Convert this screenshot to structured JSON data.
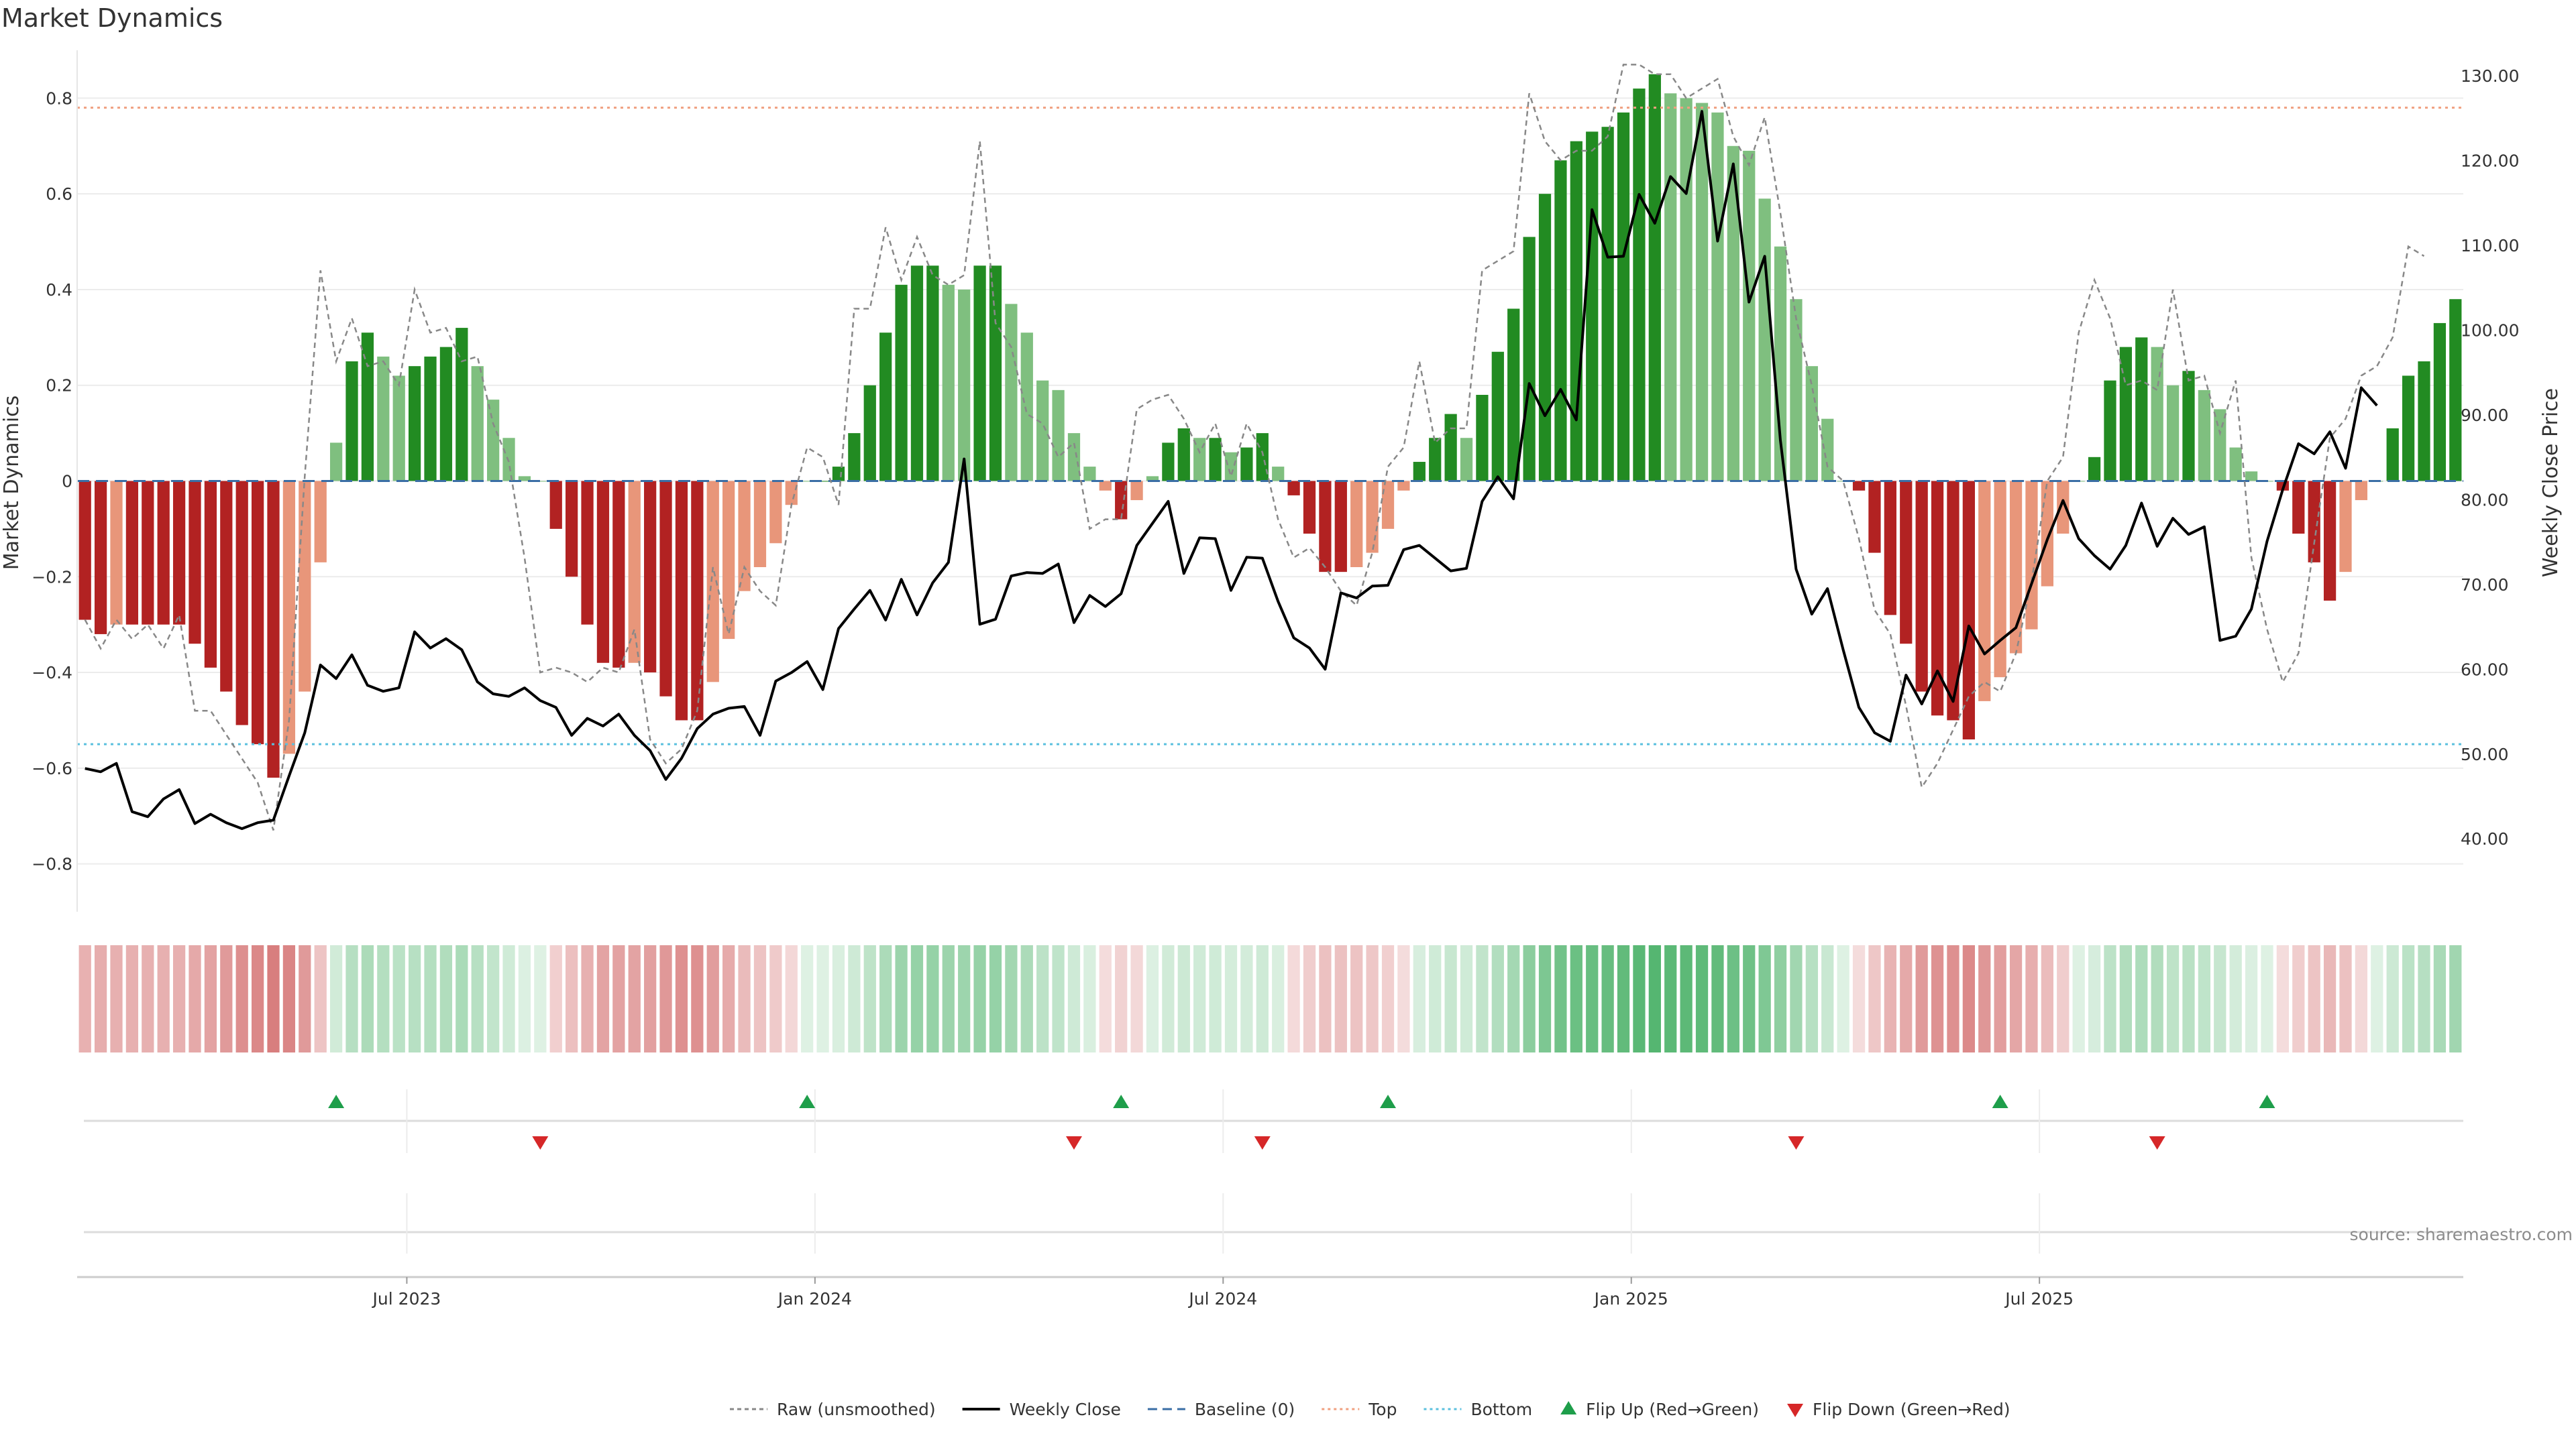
{
  "chart_data": {
    "type": "bar",
    "title": "Market Dynamics",
    "ylabel_left": "Market Dynamics",
    "ylabel_right": "Weekly Close Price",
    "ylim_left": [
      -0.9,
      0.9
    ],
    "ylim_right": [
      31.4,
      133.0
    ],
    "yticks_left": [
      {
        "value": 0.8,
        "label": "0.8"
      },
      {
        "value": 0.6,
        "label": "0.6"
      },
      {
        "value": 0.4,
        "label": "0.4"
      },
      {
        "value": 0.2,
        "label": "0.2"
      },
      {
        "value": 0,
        "label": "0"
      },
      {
        "value": -0.2,
        "label": "−0.2"
      },
      {
        "value": -0.4,
        "label": "−0.4"
      },
      {
        "value": -0.6,
        "label": "−0.6"
      },
      {
        "value": -0.8,
        "label": "−0.8"
      }
    ],
    "yticks_right": [
      {
        "value": 130,
        "label": "130.00"
      },
      {
        "value": 120,
        "label": "120.00"
      },
      {
        "value": 110,
        "label": "110.00"
      },
      {
        "value": 100,
        "label": "100.00"
      },
      {
        "value": 90,
        "label": "90.00"
      },
      {
        "value": 80,
        "label": "80.00"
      },
      {
        "value": 70,
        "label": "70.00"
      },
      {
        "value": 60,
        "label": "60.00"
      },
      {
        "value": 50,
        "label": "50.00"
      },
      {
        "value": 40,
        "label": "40.00"
      }
    ],
    "xticks": [
      {
        "index": 20.5,
        "label": "Jul 2023"
      },
      {
        "index": 46.5,
        "label": "Jan 2024"
      },
      {
        "index": 72.5,
        "label": "Jul 2024"
      },
      {
        "index": 98.5,
        "label": "Jan 2025"
      },
      {
        "index": 124.5,
        "label": "Jul 2025"
      }
    ],
    "top_level": 0.78,
    "bottom_level": -0.55,
    "baseline": 0,
    "dynamics": [
      -0.29,
      -0.32,
      -0.3,
      -0.3,
      -0.3,
      -0.3,
      -0.3,
      -0.34,
      -0.39,
      -0.44,
      -0.51,
      -0.55,
      -0.62,
      -0.57,
      -0.44,
      -0.17,
      0.08,
      0.25,
      0.31,
      0.26,
      0.22,
      0.24,
      0.26,
      0.28,
      0.32,
      0.24,
      0.17,
      0.09,
      0.01,
      0.0,
      -0.1,
      -0.2,
      -0.3,
      -0.38,
      -0.39,
      -0.38,
      -0.4,
      -0.45,
      -0.5,
      -0.5,
      -0.42,
      -0.33,
      -0.23,
      -0.18,
      -0.13,
      -0.05,
      0.0,
      0.0,
      0.03,
      0.1,
      0.2,
      0.31,
      0.41,
      0.45,
      0.45,
      0.41,
      0.4,
      0.45,
      0.45,
      0.37,
      0.31,
      0.21,
      0.19,
      0.1,
      0.03,
      -0.02,
      -0.08,
      -0.04,
      0.01,
      0.08,
      0.11,
      0.09,
      0.09,
      0.06,
      0.07,
      0.1,
      0.03,
      -0.03,
      -0.11,
      -0.19,
      -0.19,
      -0.18,
      -0.15,
      -0.1,
      -0.02,
      0.04,
      0.09,
      0.14,
      0.09,
      0.18,
      0.27,
      0.36,
      0.51,
      0.6,
      0.67,
      0.71,
      0.73,
      0.74,
      0.77,
      0.82,
      0.85,
      0.81,
      0.8,
      0.79,
      0.77,
      0.7,
      0.69,
      0.59,
      0.49,
      0.38,
      0.24,
      0.13,
      0.0,
      -0.02,
      -0.15,
      -0.28,
      -0.34,
      -0.44,
      -0.49,
      -0.5,
      -0.54,
      -0.46,
      -0.41,
      -0.36,
      -0.31,
      -0.22,
      -0.11,
      0.0,
      0.05,
      0.21,
      0.28,
      0.3,
      0.28,
      0.2,
      0.23,
      0.19,
      0.15,
      0.07,
      0.02,
      0.0,
      -0.02,
      -0.11,
      -0.17,
      -0.25,
      -0.19,
      -0.04,
      0.0,
      0.11,
      0.22,
      0.25,
      0.33,
      0.38
    ],
    "raw": [
      -0.29,
      -0.35,
      -0.29,
      -0.33,
      -0.3,
      -0.35,
      -0.28,
      -0.48,
      -0.48,
      -0.53,
      -0.58,
      -0.63,
      -0.73,
      -0.5,
      0.01,
      0.44,
      0.25,
      0.34,
      0.24,
      0.25,
      0.2,
      0.4,
      0.31,
      0.32,
      0.25,
      0.26,
      0.12,
      0.04,
      -0.16,
      -0.4,
      -0.39,
      -0.4,
      -0.42,
      -0.39,
      -0.4,
      -0.31,
      -0.54,
      -0.59,
      -0.56,
      -0.48,
      -0.18,
      -0.32,
      -0.18,
      -0.23,
      -0.26,
      -0.05,
      0.07,
      0.05,
      -0.05,
      0.36,
      0.36,
      0.53,
      0.42,
      0.51,
      0.43,
      0.41,
      0.43,
      0.71,
      0.33,
      0.28,
      0.14,
      0.12,
      0.05,
      0.08,
      -0.1,
      -0.08,
      -0.08,
      0.15,
      0.17,
      0.18,
      0.13,
      0.06,
      0.12,
      0.01,
      0.12,
      0.06,
      -0.08,
      -0.16,
      -0.14,
      -0.18,
      -0.23,
      -0.26,
      -0.15,
      0.03,
      0.07,
      0.25,
      0.08,
      0.11,
      0.11,
      0.44,
      0.46,
      0.48,
      0.81,
      0.71,
      0.67,
      0.69,
      0.69,
      0.72,
      0.87,
      0.87,
      0.85,
      0.85,
      0.8,
      0.82,
      0.84,
      0.72,
      0.66,
      0.76,
      0.56,
      0.34,
      0.2,
      0.03,
      0.0,
      -0.12,
      -0.27,
      -0.32,
      -0.47,
      -0.64,
      -0.59,
      -0.52,
      -0.45,
      -0.42,
      -0.44,
      -0.36,
      -0.21,
      0.0,
      0.05,
      0.31,
      0.42,
      0.34,
      0.2,
      0.21,
      0.19,
      0.4,
      0.21,
      0.22,
      0.1,
      0.21,
      -0.16,
      -0.31,
      -0.42,
      -0.36,
      -0.13,
      0.09,
      0.13,
      0.22,
      0.24,
      0.3,
      0.49,
      0.47
    ],
    "close": [
      48.3,
      47.9,
      48.9,
      43.2,
      42.6,
      44.7,
      45.8,
      41.8,
      42.9,
      41.9,
      41.2,
      41.9,
      42.2,
      47.4,
      52.5,
      60.5,
      58.9,
      61.7,
      58.1,
      57.4,
      57.8,
      64.4,
      62.5,
      63.6,
      62.3,
      58.5,
      57.1,
      56.8,
      57.8,
      56.3,
      55.5,
      52.2,
      54.2,
      53.3,
      54.7,
      52.2,
      50.4,
      47.0,
      49.5,
      53.0,
      54.7,
      55.4,
      55.6,
      52.2,
      58.6,
      59.6,
      60.9,
      57.6,
      64.8,
      67.1,
      69.3,
      65.8,
      70.6,
      66.4,
      70.2,
      72.6,
      84.8,
      65.3,
      65.9,
      71.0,
      71.4,
      71.3,
      72.4,
      65.5,
      68.7,
      67.4,
      68.9,
      74.6,
      77.2,
      79.8,
      71.3,
      75.5,
      75.4,
      69.3,
      73.2,
      73.1,
      68.0,
      63.7,
      62.5,
      60.0,
      69.0,
      68.4,
      69.8,
      69.9,
      74.1,
      74.6,
      73.1,
      71.6,
      71.9,
      79.8,
      82.7,
      80.1,
      93.7,
      89.9,
      93.0,
      89.4,
      114.2,
      108.6,
      108.7,
      116.0,
      112.6,
      118.1,
      116.1,
      125.8,
      110.5,
      119.6,
      103.3,
      108.7,
      87.0,
      71.8,
      66.5,
      69.5,
      62.3,
      55.5,
      52.5,
      51.5,
      59.3,
      55.9,
      59.8,
      56.2,
      65.1,
      61.8,
      63.4,
      64.9,
      70.1,
      75.3,
      79.9,
      75.4,
      73.4,
      71.8,
      74.6,
      79.6,
      74.5,
      77.8,
      75.9,
      76.8,
      63.4,
      63.9,
      67.1,
      75.1,
      81.2,
      86.6,
      85.4,
      88.0,
      83.7,
      93.2,
      91.1
    ],
    "colorbar": [
      -0.29,
      -0.32,
      -0.3,
      -0.3,
      -0.3,
      -0.3,
      -0.3,
      -0.34,
      -0.39,
      -0.44,
      -0.51,
      -0.55,
      -0.62,
      -0.57,
      -0.44,
      -0.17,
      0.08,
      0.25,
      0.31,
      0.26,
      0.22,
      0.24,
      0.26,
      0.28,
      0.32,
      0.24,
      0.17,
      0.09,
      0.01,
      0.0,
      -0.1,
      -0.2,
      -0.3,
      -0.38,
      -0.39,
      -0.38,
      -0.4,
      -0.45,
      -0.5,
      -0.5,
      -0.42,
      -0.33,
      -0.23,
      -0.18,
      -0.13,
      -0.05,
      0.0,
      0.0,
      0.03,
      0.1,
      0.2,
      0.31,
      0.41,
      0.45,
      0.45,
      0.41,
      0.4,
      0.45,
      0.45,
      0.37,
      0.31,
      0.21,
      0.19,
      0.1,
      0.03,
      -0.02,
      -0.08,
      -0.04,
      0.01,
      0.08,
      0.11,
      0.09,
      0.09,
      0.06,
      0.07,
      0.1,
      0.03,
      -0.03,
      -0.11,
      -0.19,
      -0.19,
      -0.18,
      -0.15,
      -0.1,
      -0.02,
      0.04,
      0.09,
      0.14,
      0.09,
      0.18,
      0.27,
      0.36,
      0.51,
      0.6,
      0.67,
      0.71,
      0.73,
      0.74,
      0.77,
      0.82,
      0.85,
      0.81,
      0.8,
      0.79,
      0.77,
      0.7,
      0.69,
      0.59,
      0.49,
      0.38,
      0.24,
      0.13,
      0.0,
      -0.02,
      -0.15,
      -0.28,
      -0.34,
      -0.44,
      -0.49,
      -0.5,
      -0.54,
      -0.46,
      -0.41,
      -0.36,
      -0.31,
      -0.22,
      -0.11,
      0.0,
      0.05,
      0.21,
      0.28,
      0.3,
      0.28,
      0.2,
      0.23,
      0.19,
      0.15,
      0.07,
      0.02,
      0.0,
      -0.02,
      -0.11,
      -0.17,
      -0.25,
      -0.19,
      -0.04,
      0.0,
      0.11,
      0.22,
      0.25,
      0.33,
      0.38
    ],
    "flip_up": [
      16,
      46,
      66,
      83,
      122,
      139
    ],
    "flip_down": [
      29,
      63,
      75,
      109,
      132
    ],
    "source": "source: sharemaestro.com",
    "legend": [
      {
        "key": "raw",
        "label": "Raw (unsmoothed)"
      },
      {
        "key": "close",
        "label": "Weekly Close"
      },
      {
        "key": "baseline",
        "label": "Baseline (0)"
      },
      {
        "key": "top",
        "label": "Top"
      },
      {
        "key": "bottom",
        "label": "Bottom"
      },
      {
        "key": "flip_up",
        "label": "Flip Up (Red→Green)"
      },
      {
        "key": "flip_down",
        "label": "Flip Down (Green→Red)"
      }
    ],
    "colors": {
      "strong_green": "#228b22",
      "light_green": "#7fbf7f",
      "strong_red": "#b22222",
      "light_red": "#e8967a",
      "close_line": "#000000",
      "raw_line": "#888888",
      "baseline": "#3a6ea5",
      "top": "#f0a080",
      "bottom": "#5bc0de",
      "marker_up": "#1e9e4a",
      "marker_down": "#d62728"
    }
  }
}
